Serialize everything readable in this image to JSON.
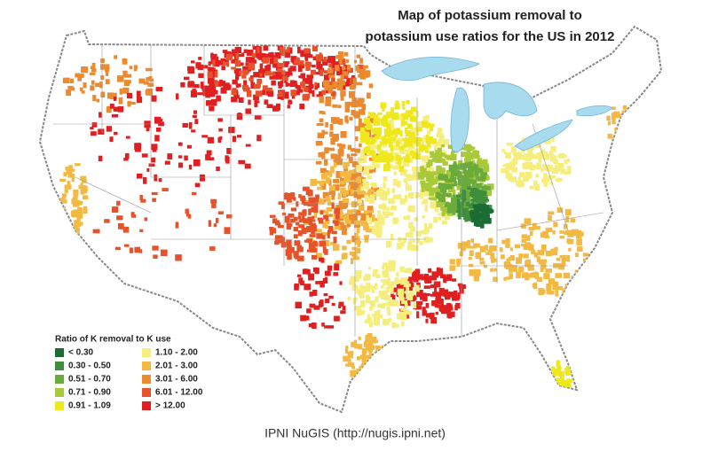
{
  "title": [
    "Map of potassium removal to",
    "potassium use ratios for the US in 2012"
  ],
  "legend": {
    "title": "Ratio of K removal to K use",
    "items": [
      {
        "label": "< 0.30",
        "color": "#1a6b34"
      },
      {
        "label": "0.30 - 0.50",
        "color": "#3e8e3e"
      },
      {
        "label": "0.51 - 0.70",
        "color": "#6aab3b"
      },
      {
        "label": "0.71 - 0.90",
        "color": "#a9c93a"
      },
      {
        "label": "0.91 - 1.09",
        "color": "#efe81c"
      },
      {
        "label": "1.10 - 2.00",
        "color": "#f6ee7c"
      },
      {
        "label": "2.01 - 3.00",
        "color": "#f3b942"
      },
      {
        "label": "3.01 - 6.00",
        "color": "#ec8a2f"
      },
      {
        "label": "6.01 - 12.00",
        "color": "#e6532a"
      },
      {
        "label": "> 12.00",
        "color": "#e02020"
      }
    ]
  },
  "source": "IPNI NuGIS (http://nugis.ipni.net)"
}
